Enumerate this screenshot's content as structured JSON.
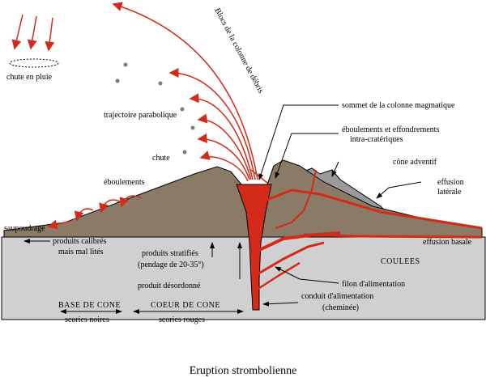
{
  "ejecta": "Blocs de la colonne de débris",
  "chute_pluie": "chute en pluie",
  "trajectoire": "trajectoire parabolique",
  "chute": "chute",
  "eboulements": "éboulements",
  "saupoudrage": "saupoudrage",
  "sommet": "sommet de la colonne magmatique",
  "intra": [
    "éboulements et effondrements",
    "intra-cratériques"
  ],
  "cone_adventif": "cône adventif",
  "effusion_laterale": [
    "effusion",
    "latérale"
  ],
  "effusion_basale": "effusion basale",
  "coulees": "COULEES",
  "calibres": [
    "produits calibrés",
    "mais mal lités"
  ],
  "stratifies": [
    "produits stratifiés",
    "(pendage de 20-35°)"
  ],
  "desordonne": "produit désordonné",
  "filon": "filon d'alimentation",
  "conduit": [
    "conduit d'alimentation",
    "(cheminée)"
  ],
  "base": {
    "title": "BASE DE CONE",
    "sub": "scories noires"
  },
  "coeur": {
    "title": "COEUR DE CONE",
    "sub": "scories rouges"
  },
  "caption": "Eruption strombolienne"
}
